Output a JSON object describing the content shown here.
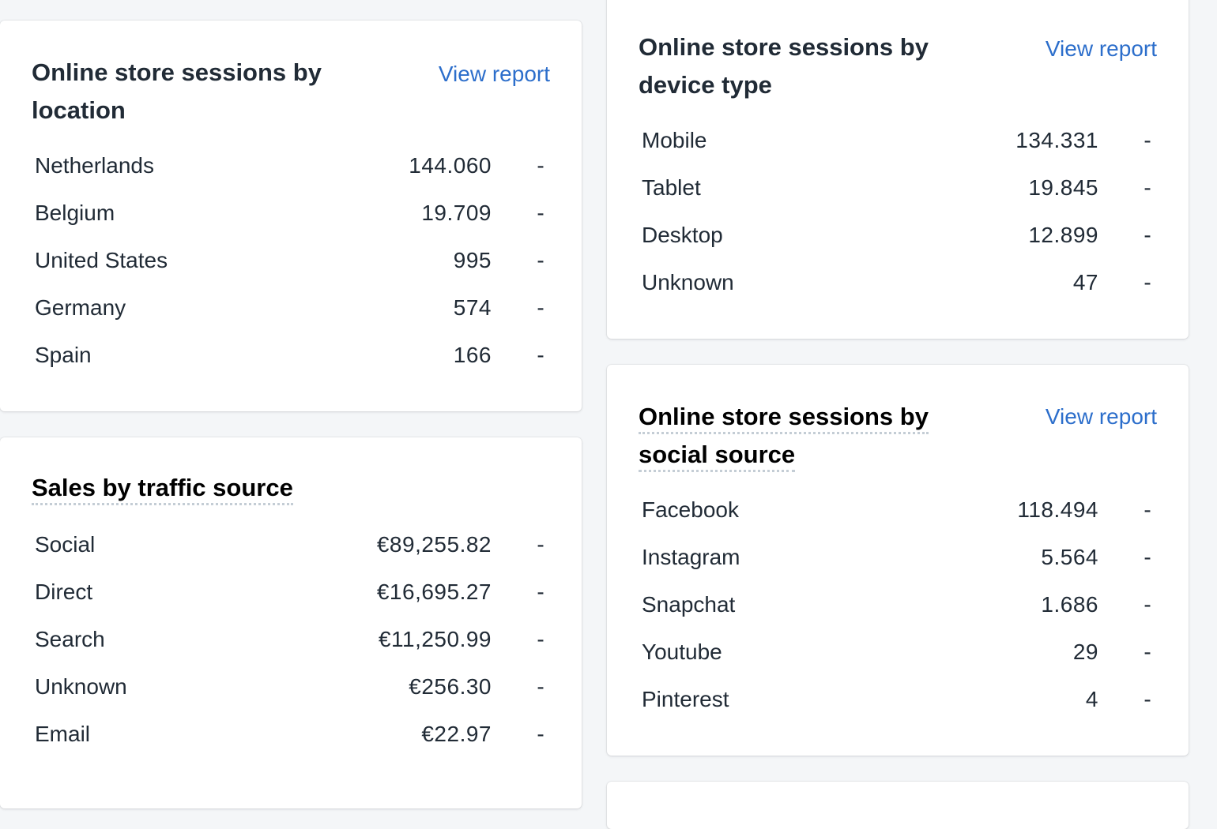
{
  "location": {
    "title": "Online store sessions by location",
    "view_report": "View report",
    "rows": [
      {
        "label": "Netherlands",
        "value": "144.060",
        "trend": "-"
      },
      {
        "label": "Belgium",
        "value": "19.709",
        "trend": "-"
      },
      {
        "label": "United States",
        "value": "995",
        "trend": "-"
      },
      {
        "label": "Germany",
        "value": "574",
        "trend": "-"
      },
      {
        "label": "Spain",
        "value": "166",
        "trend": "-"
      }
    ]
  },
  "traffic": {
    "title": "Sales by traffic source",
    "rows": [
      {
        "label": "Social",
        "value": "€89,255.82",
        "trend": "-"
      },
      {
        "label": "Direct",
        "value": "€16,695.27",
        "trend": "-"
      },
      {
        "label": "Search",
        "value": "€11,250.99",
        "trend": "-"
      },
      {
        "label": "Unknown",
        "value": "€256.30",
        "trend": "-"
      },
      {
        "label": "Email",
        "value": "€22.97",
        "trend": "-"
      }
    ]
  },
  "device": {
    "title": "Online store sessions by device type",
    "view_report": "View report",
    "rows": [
      {
        "label": "Mobile",
        "value": "134.331",
        "trend": "-"
      },
      {
        "label": "Tablet",
        "value": "19.845",
        "trend": "-"
      },
      {
        "label": "Desktop",
        "value": "12.899",
        "trend": "-"
      },
      {
        "label": "Unknown",
        "value": "47",
        "trend": "-"
      }
    ]
  },
  "social": {
    "title_line1": "Online store sessions by",
    "title_line2": "social source",
    "view_report": "View report",
    "rows": [
      {
        "label": "Facebook",
        "value": "118.494",
        "trend": "-"
      },
      {
        "label": "Instagram",
        "value": "5.564",
        "trend": "-"
      },
      {
        "label": "Snapchat",
        "value": "1.686",
        "trend": "-"
      },
      {
        "label": "Youtube",
        "value": "29",
        "trend": "-"
      },
      {
        "label": "Pinterest",
        "value": "4",
        "trend": "-"
      }
    ]
  },
  "colors": {
    "background": "#f4f6f8",
    "card": "#ffffff",
    "link": "#2c6ecb",
    "text": "#212b36"
  }
}
